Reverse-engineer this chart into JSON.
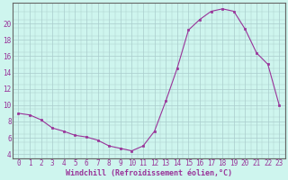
{
  "x": [
    0,
    1,
    2,
    3,
    4,
    5,
    6,
    7,
    8,
    9,
    10,
    11,
    12,
    13,
    14,
    15,
    16,
    17,
    18,
    19,
    20,
    21,
    22,
    23
  ],
  "y": [
    9.0,
    8.8,
    8.2,
    7.2,
    6.8,
    6.3,
    6.1,
    5.7,
    5.0,
    4.7,
    4.4,
    5.0,
    6.8,
    10.5,
    14.5,
    19.2,
    20.5,
    21.5,
    21.8,
    21.5,
    19.3,
    16.4,
    15.0,
    10.0
  ],
  "line_color": "#993399",
  "marker_color": "#993399",
  "bg_color": "#cef5ee",
  "grid_color": "#aacccc",
  "xlabel": "Windchill (Refroidissement éolien,°C)",
  "ylim": [
    3.5,
    22.5
  ],
  "xlim": [
    -0.5,
    23.5
  ],
  "yticks": [
    4,
    6,
    8,
    10,
    12,
    14,
    16,
    18,
    20
  ],
  "xticks": [
    0,
    1,
    2,
    3,
    4,
    5,
    6,
    7,
    8,
    9,
    10,
    11,
    12,
    13,
    14,
    15,
    16,
    17,
    18,
    19,
    20,
    21,
    22,
    23
  ],
  "xlabel_color": "#993399",
  "tick_color": "#993399",
  "tick_fontsize": 5.5,
  "xlabel_fontsize": 6.0
}
